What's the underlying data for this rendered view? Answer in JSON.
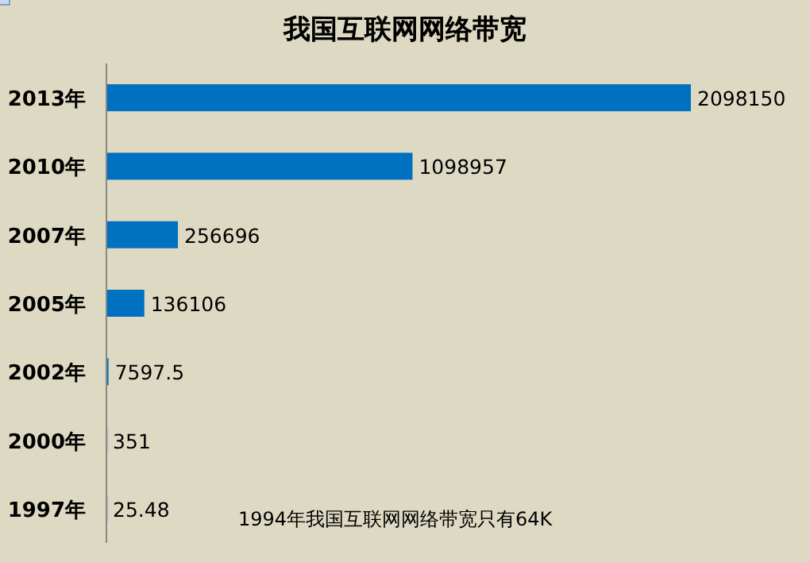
{
  "chart_data": {
    "type": "bar",
    "orientation": "horizontal",
    "title": "我国互联网网络带宽",
    "categories": [
      "2013年",
      "2010年",
      "2007年",
      "2005年",
      "2002年",
      "2000年",
      "1997年"
    ],
    "values": [
      2098150,
      1098957,
      256696,
      136106,
      7597.5,
      351,
      25.48
    ],
    "color": "#0070c0",
    "data_labels": true,
    "annotations": [
      "1994年我国互联网网络带宽只有64K"
    ]
  }
}
